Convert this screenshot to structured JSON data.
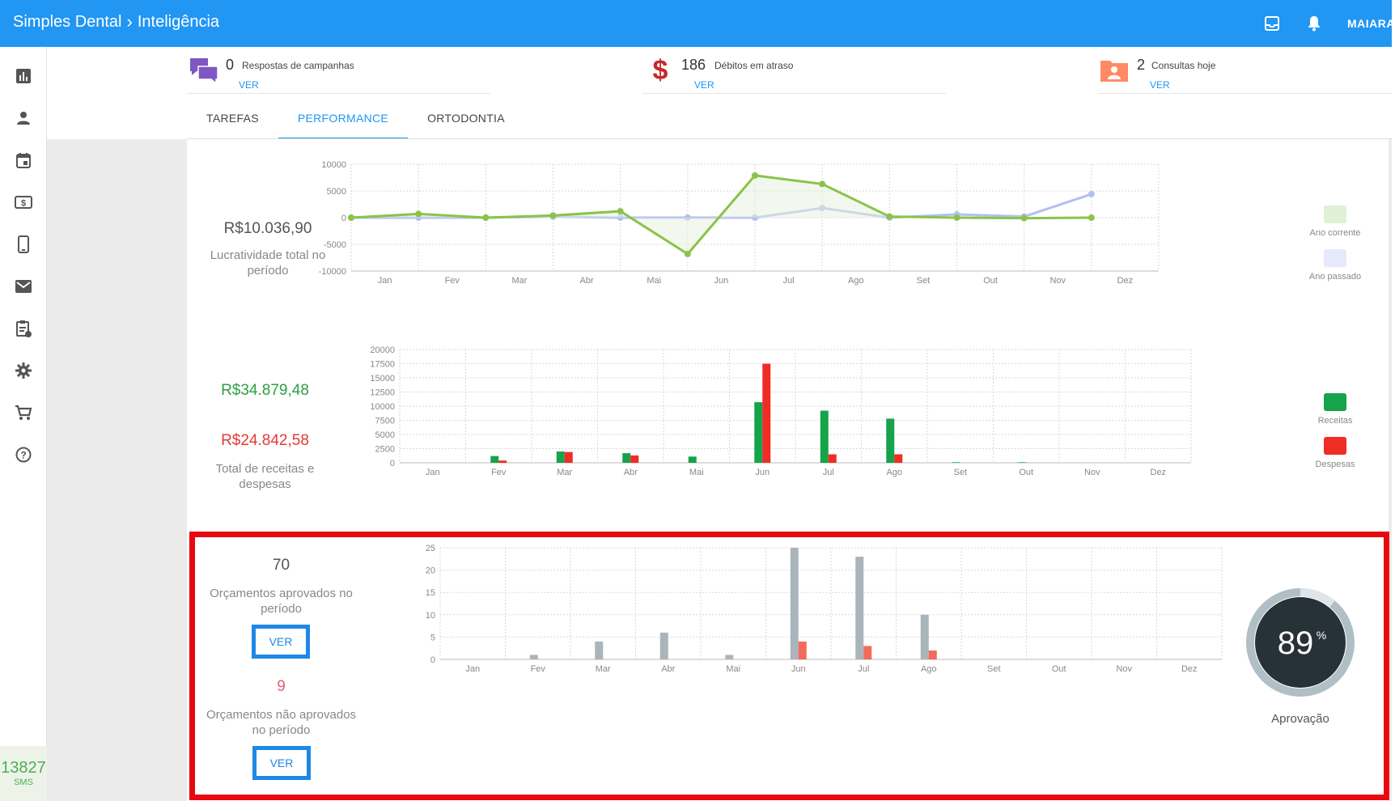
{
  "header": {
    "app": "Simples Dental",
    "section": "Inteligência",
    "user": "MAIARA",
    "icons": [
      "inbox-icon",
      "bell-icon"
    ],
    "color": "#2196f3"
  },
  "sidebar": {
    "items": [
      "chart-icon",
      "person-icon",
      "calendar-icon",
      "money-icon",
      "phone-icon",
      "mail-icon",
      "clipboard-icon",
      "gear-icon",
      "cart-icon",
      "help-icon"
    ],
    "sms_count": "13827",
    "sms_label": "SMS"
  },
  "summary": [
    {
      "value": "0",
      "label": "Respostas de campanhas",
      "link": "VER",
      "icon": "chat-icon",
      "color": "#7e57c2"
    },
    {
      "value": "186",
      "label": "Débitos em atraso",
      "link": "VER",
      "icon": "dollar-icon",
      "color": "#c62828"
    },
    {
      "value": "2",
      "label": "Consultas hoje",
      "link": "VER",
      "icon": "folder-person-icon",
      "color": "#ff8a65"
    }
  ],
  "tabs": [
    "TAREFAS",
    "PERFORMANCE",
    "ORTODONTIA"
  ],
  "active_tab": "PERFORMANCE",
  "profit": {
    "value": "R$10.036,90",
    "label": "Lucratividade total no período"
  },
  "revenue": {
    "receitas_total": "R$34.879,48",
    "despesas_total": "R$24.842,58",
    "label": "Total de receitas e despesas"
  },
  "budgets": {
    "approved_count": "70",
    "approved_label": "Orçamentos aprovados no período",
    "not_approved_count": "9",
    "not_approved_label": "Orçamentos não aprovados no período",
    "button": "VER",
    "approval_percent": "89",
    "approval_symbol": "%",
    "approval_label": "Aprovação"
  },
  "chart_data": [
    {
      "type": "line",
      "categories": [
        "Jan",
        "Fev",
        "Mar",
        "Abr",
        "Mai",
        "Jun",
        "Jul",
        "Ago",
        "Set",
        "Out",
        "Nov",
        "Dez"
      ],
      "ylim": [
        -10000,
        10000
      ],
      "yticks": [
        10000,
        5000,
        0,
        -5000,
        -10000
      ],
      "series": [
        {
          "name": "Ano corrente",
          "color": "#8bc34a",
          "values": [
            0,
            700,
            0,
            400,
            1200,
            -6800,
            7900,
            6300,
            200,
            0,
            -100,
            0
          ]
        },
        {
          "name": "Ano passado",
          "color": "#b3bff2",
          "values": [
            0,
            0,
            0,
            200,
            0,
            0,
            0,
            1800,
            0,
            600,
            200,
            4400
          ]
        }
      ],
      "legend": "right"
    },
    {
      "type": "bar",
      "categories": [
        "Jan",
        "Fev",
        "Mar",
        "Abr",
        "Mai",
        "Jun",
        "Jul",
        "Ago",
        "Set",
        "Out",
        "Nov",
        "Dez"
      ],
      "ylim": [
        0,
        20000
      ],
      "yticks": [
        20000,
        17500,
        15000,
        12500,
        10000,
        7500,
        5000,
        2500,
        0
      ],
      "series": [
        {
          "name": "Receitas",
          "color": "#16a34a",
          "values": [
            0,
            1200,
            2000,
            1700,
            1100,
            10700,
            9200,
            7800,
            100,
            100,
            0,
            0
          ]
        },
        {
          "name": "Despesas",
          "color": "#ef2d25",
          "values": [
            0,
            400,
            1900,
            1300,
            0,
            17500,
            1500,
            1500,
            0,
            0,
            0,
            0
          ]
        }
      ],
      "legend": "right"
    },
    {
      "type": "bar",
      "categories": [
        "Jan",
        "Fev",
        "Mar",
        "Abr",
        "Mai",
        "Jun",
        "Jul",
        "Ago",
        "Set",
        "Out",
        "Nov",
        "Dez"
      ],
      "ylim": [
        0,
        25
      ],
      "yticks": [
        25,
        20,
        15,
        10,
        5,
        0
      ],
      "series": [
        {
          "color": "#aab4bb",
          "values": [
            0,
            1,
            4,
            6,
            1,
            25,
            23,
            10,
            0,
            0,
            0,
            0
          ]
        },
        {
          "color": "#f26b5b",
          "values": [
            0,
            0,
            0,
            0,
            0,
            4,
            3,
            2,
            0,
            0,
            0,
            0
          ]
        }
      ]
    }
  ]
}
